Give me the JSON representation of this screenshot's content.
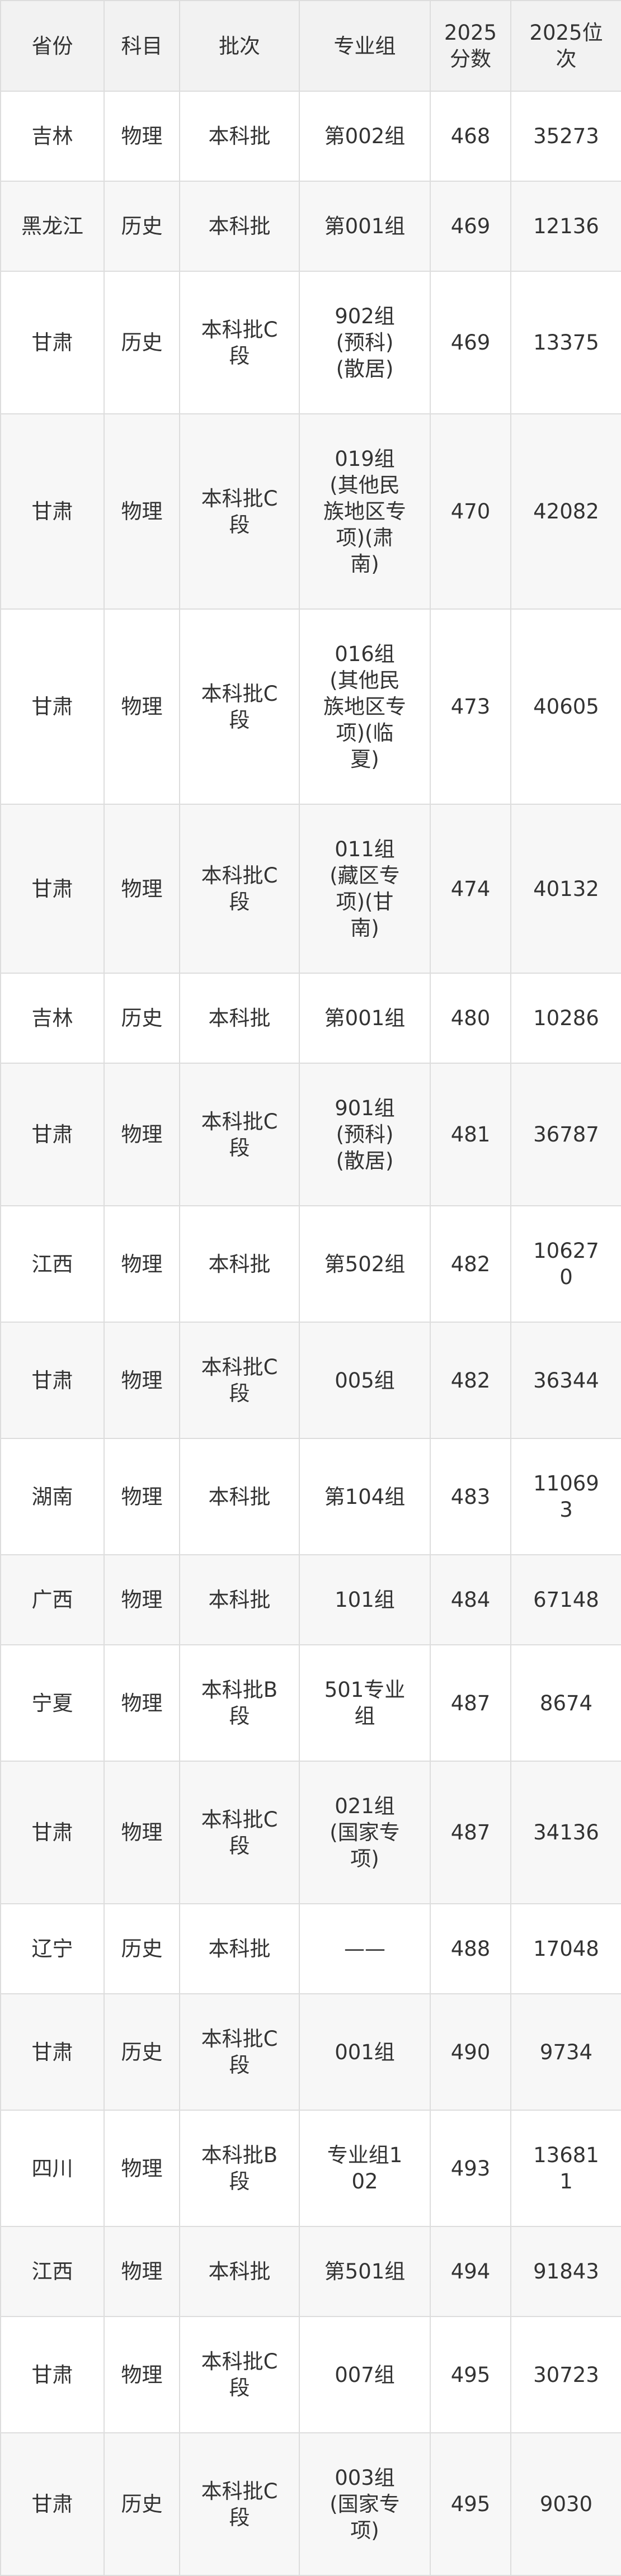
{
  "table": {
    "header": [
      "省份",
      "科目",
      "批次",
      "专业组",
      "2025分数",
      "2025位次"
    ],
    "rows": [
      [
        "吉林",
        "物理",
        "本科批",
        "第002组",
        "468",
        "35273"
      ],
      [
        "黑龙江",
        "历史",
        "本科批",
        "第001组",
        "469",
        "12136"
      ],
      [
        "甘肃",
        "历史",
        "本科批C段",
        "902组(预科)(散居)",
        "469",
        "13375"
      ],
      [
        "甘肃",
        "物理",
        "本科批C段",
        "019组(其他民族地区专项)(肃南)",
        "470",
        "42082"
      ],
      [
        "甘肃",
        "物理",
        "本科批C段",
        "016组(其他民族地区专项)(临夏)",
        "473",
        "40605"
      ],
      [
        "甘肃",
        "物理",
        "本科批C段",
        "011组(藏区专项)(甘南)",
        "474",
        "40132"
      ],
      [
        "吉林",
        "历史",
        "本科批",
        "第001组",
        "480",
        "10286"
      ],
      [
        "甘肃",
        "物理",
        "本科批C段",
        "901组(预科)(散居)",
        "481",
        "36787"
      ],
      [
        "江西",
        "物理",
        "本科批",
        "第502组",
        "482",
        "106270"
      ],
      [
        "甘肃",
        "物理",
        "本科批C段",
        "005组",
        "482",
        "36344"
      ],
      [
        "湖南",
        "物理",
        "本科批",
        "第104组",
        "483",
        "110693"
      ],
      [
        "广西",
        "物理",
        "本科批",
        "101组",
        "484",
        "67148"
      ],
      [
        "宁夏",
        "物理",
        "本科批B段",
        "501专业组",
        "487",
        "8674"
      ],
      [
        "甘肃",
        "物理",
        "本科批C段",
        "021组(国家专项)",
        "487",
        "34136"
      ],
      [
        "辽宁",
        "历史",
        "本科批",
        "——",
        "488",
        "17048"
      ],
      [
        "甘肃",
        "历史",
        "本科批C段",
        "001组",
        "490",
        "9734"
      ],
      [
        "四川",
        "物理",
        "本科批B段",
        "专业组102",
        "493",
        "136811"
      ],
      [
        "江西",
        "物理",
        "本科批",
        "第501组",
        "494",
        "91843"
      ],
      [
        "甘肃",
        "物理",
        "本科批C段",
        "007组",
        "495",
        "30723"
      ],
      [
        "甘肃",
        "历史",
        "本科批C段",
        "003组(国家专项)",
        "495",
        "9030"
      ]
    ]
  }
}
